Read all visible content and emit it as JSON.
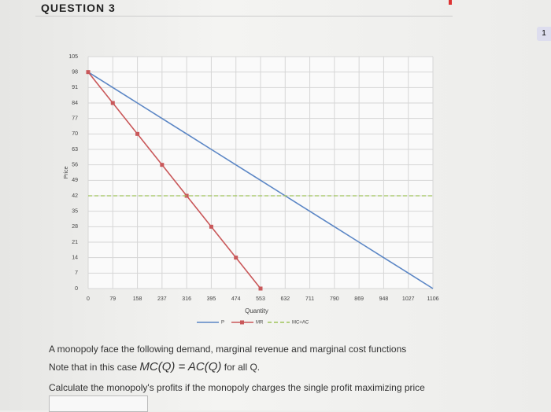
{
  "header": {
    "title": "QUESTION 3",
    "page_number": "1"
  },
  "chart_data": {
    "type": "line",
    "x": [
      0,
      79,
      158,
      237,
      316,
      395,
      474,
      553,
      632,
      711,
      790,
      869,
      948,
      1027,
      1106
    ],
    "series": [
      {
        "name": "P",
        "color": "#5b86c5",
        "dash": false,
        "markers": false,
        "values": [
          98,
          91,
          84,
          77,
          70,
          63,
          56,
          49,
          42,
          35,
          28,
          21,
          14,
          7,
          0
        ]
      },
      {
        "name": "MR",
        "color": "#c9585a",
        "dash": false,
        "markers": true,
        "values": [
          98,
          84,
          70,
          56,
          42,
          28,
          14,
          0,
          null,
          null,
          null,
          null,
          null,
          null,
          null
        ]
      },
      {
        "name": "MC=AC",
        "color": "#9fc45a",
        "dash": true,
        "markers": false,
        "values": [
          42,
          42,
          42,
          42,
          42,
          42,
          42,
          42,
          42,
          42,
          42,
          42,
          42,
          42,
          42
        ]
      }
    ],
    "x_label": "Quantity",
    "y_label": "Price",
    "xlim": [
      0,
      1106
    ],
    "xticks": [
      0,
      79,
      158,
      237,
      316,
      395,
      474,
      553,
      632,
      711,
      790,
      869,
      948,
      1027,
      1106
    ],
    "ylim": [
      0,
      105
    ],
    "yticks": [
      0,
      7,
      14,
      21,
      28,
      35,
      42,
      49,
      56,
      63,
      70,
      77,
      84,
      91,
      98,
      105
    ],
    "grid": true,
    "legend": "bottom"
  },
  "question": {
    "line1": "A monopoly face the following demand, marginal revenue and marginal cost functions",
    "note_before": "Note that in this case",
    "note_formula": "MC(Q) = AC(Q)",
    "note_after": "for all Q.",
    "prompt": "Calculate the monopoly's profits if the monopoly charges the single profit maximizing price"
  }
}
